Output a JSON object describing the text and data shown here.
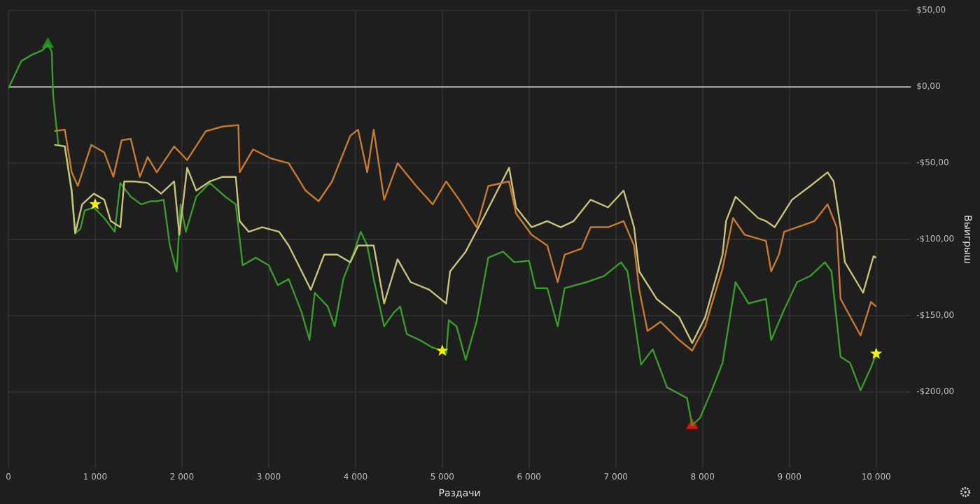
{
  "chart_data": {
    "type": "line",
    "xlabel": "Раздачи",
    "ylabel": "Выигрыш",
    "xlim": [
      0,
      10400
    ],
    "ylim": [
      -250,
      50
    ],
    "xticks": [
      0,
      {
        "value": 1000,
        "label": "1 000"
      },
      {
        "value": 2000,
        "label": "2 000"
      },
      {
        "value": 3000,
        "label": "3 000"
      },
      {
        "value": 4000,
        "label": "4 000"
      },
      {
        "value": 5000,
        "label": "5 000"
      },
      {
        "value": 6000,
        "label": "6 000"
      },
      {
        "value": 7000,
        "label": "7 000"
      },
      {
        "value": 8000,
        "label": "8 000"
      },
      {
        "value": 9000,
        "label": "9 000"
      },
      {
        "value": 10000,
        "label": "10 000"
      }
    ],
    "yticks": [
      {
        "value": 50,
        "label": "$50,00"
      },
      {
        "value": 0,
        "label": "$0,00"
      },
      {
        "value": -50,
        "label": "-$50,00"
      },
      {
        "value": -100,
        "label": "-$100,00"
      },
      {
        "value": -150,
        "label": "-$150,00"
      },
      {
        "value": -200,
        "label": "-$200,00"
      }
    ],
    "grid": true,
    "legend": false,
    "marker": "none",
    "line_style": "solid",
    "ref_lines": [
      {
        "axis": "y",
        "value": 0,
        "color": "#b4b4b4"
      }
    ],
    "series": [
      {
        "color": "#c87a30",
        "x": [
          530,
          650,
          730,
          800,
          955,
          1105,
          1210,
          1305,
          1410,
          1515,
          1605,
          1710,
          1910,
          2060,
          2275,
          2470,
          2650,
          2665,
          2820,
          3030,
          3230,
          3425,
          3575,
          3730,
          3940,
          4030,
          4135,
          4210,
          4330,
          4485,
          4700,
          4890,
          5045,
          5195,
          5395,
          5530,
          5770,
          5850,
          6030,
          6210,
          6330,
          6410,
          6605,
          6710,
          6910,
          7090,
          7210,
          7270,
          7365,
          7515,
          7730,
          7880,
          8030,
          8230,
          8350,
          8485,
          8730,
          8790,
          8880,
          8940,
          9090,
          9290,
          9440,
          9545,
          9590,
          9820,
          9940,
          10000
        ],
        "values": [
          -29,
          -28,
          -56,
          -65,
          -38,
          -43,
          -59,
          -35,
          -34,
          -59,
          -46,
          -56,
          -39,
          -48,
          -29,
          -26,
          -25,
          -56,
          -41,
          -47,
          -50,
          -68,
          -75,
          -62,
          -32,
          -28,
          -56,
          -28,
          -74,
          -50,
          -65,
          -77,
          -62,
          -74,
          -92,
          -65,
          -62,
          -83,
          -97,
          -104,
          -128,
          -110,
          -106,
          -92,
          -92,
          -88,
          -104,
          -133,
          -160,
          -154,
          -166,
          -173,
          -157,
          -119,
          -86,
          -97,
          -101,
          -121,
          -110,
          -95,
          -92,
          -88,
          -77,
          -92,
          -139,
          -163,
          -141,
          -144
        ]
      },
      {
        "color": "#c9c27a",
        "x": [
          530,
          650,
          730,
          770,
          850,
          985,
          1105,
          1180,
          1290,
          1335,
          1455,
          1605,
          1760,
          1910,
          1970,
          2060,
          2165,
          2320,
          2470,
          2620,
          2665,
          2770,
          2925,
          3120,
          3230,
          3380,
          3485,
          3640,
          3790,
          3940,
          4030,
          4210,
          4330,
          4485,
          4635,
          4850,
          5045,
          5090,
          5270,
          5500,
          5770,
          5850,
          6030,
          6210,
          6365,
          6515,
          6710,
          6910,
          7090,
          7210,
          7270,
          7470,
          7730,
          7880,
          8030,
          8230,
          8270,
          8380,
          8640,
          8730,
          8830,
          9030,
          9240,
          9440,
          9510,
          9590,
          9640,
          9850,
          9970,
          10000
        ],
        "values": [
          -38,
          -39,
          -68,
          -96,
          -77,
          -70,
          -74,
          -88,
          -92,
          -62,
          -62,
          -63,
          -70,
          -62,
          -97,
          -53,
          -68,
          -62,
          -59,
          -59,
          -88,
          -95,
          -92,
          -95,
          -104,
          -121,
          -133,
          -110,
          -110,
          -115,
          -104,
          -104,
          -142,
          -113,
          -128,
          -133,
          -142,
          -121,
          -108,
          -83,
          -53,
          -79,
          -92,
          -88,
          -92,
          -88,
          -74,
          -79,
          -68,
          -92,
          -121,
          -139,
          -151,
          -168,
          -151,
          -110,
          -88,
          -72,
          -86,
          -88,
          -92,
          -74,
          -65,
          -56,
          -62,
          -92,
          -115,
          -135,
          -111,
          -112
        ]
      },
      {
        "color": "#3a9a2a",
        "x": [
          0,
          150,
          270,
          390,
          455,
          500,
          515,
          575,
          650,
          725,
          770,
          830,
          880,
          985,
          1105,
          1225,
          1290,
          1410,
          1530,
          1635,
          1710,
          1790,
          1860,
          1940,
          1985,
          2045,
          2165,
          2320,
          2500,
          2620,
          2700,
          2850,
          3000,
          3105,
          3230,
          3380,
          3470,
          3530,
          3680,
          3760,
          3860,
          3985,
          4060,
          4135,
          4210,
          4330,
          4440,
          4515,
          4590,
          4740,
          4890,
          5000,
          5045,
          5075,
          5165,
          5270,
          5395,
          5530,
          5700,
          5830,
          6000,
          6075,
          6210,
          6330,
          6410,
          6665,
          6865,
          7060,
          7135,
          7290,
          7425,
          7590,
          7820,
          7880,
          7970,
          8105,
          8230,
          8380,
          8530,
          8730,
          8790,
          8940,
          9090,
          9240,
          9410,
          9485,
          9590,
          9700,
          9820,
          9940,
          10000
        ],
        "values": [
          -1,
          17,
          21,
          24,
          28,
          23,
          -5,
          -38,
          -39,
          -68,
          -96,
          -93,
          -81,
          -79,
          -86,
          -95,
          -63,
          -72,
          -77,
          -75,
          -75,
          -74,
          -104,
          -121,
          -77,
          -95,
          -72,
          -63,
          -72,
          -77,
          -117,
          -112,
          -117,
          -130,
          -126,
          -148,
          -166,
          -135,
          -144,
          -157,
          -126,
          -108,
          -95,
          -104,
          -126,
          -157,
          -148,
          -144,
          -162,
          -166,
          -171,
          -173,
          -175,
          -153,
          -157,
          -179,
          -154,
          -112,
          -108,
          -115,
          -114,
          -132,
          -132,
          -157,
          -132,
          -128,
          -124,
          -115,
          -121,
          -182,
          -172,
          -197,
          -204,
          -222,
          -217,
          -199,
          -181,
          -128,
          -142,
          -139,
          -166,
          -146,
          -128,
          -124,
          -115,
          -121,
          -177,
          -181,
          -199,
          -184,
          -175
        ]
      },
      {
        "type": "scatter",
        "color": "#1f8a1f",
        "marker": "triangle",
        "x": [
          455
        ],
        "values": [
          28
        ]
      },
      {
        "type": "scatter",
        "color": "#f5f000",
        "marker": "star",
        "x": [
          1000,
          5000,
          10000
        ],
        "values": [
          -77,
          -173,
          -175
        ]
      },
      {
        "type": "scatter",
        "color": "#e81010",
        "marker": "triangle",
        "x": [
          7880
        ],
        "values": [
          -222
        ]
      }
    ]
  }
}
